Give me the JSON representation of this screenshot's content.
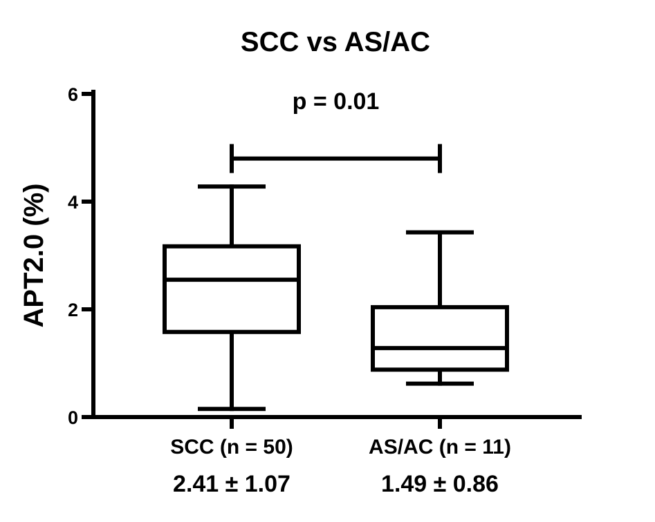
{
  "chart_data": {
    "type": "box",
    "title": "SCC vs AS/AC",
    "ylabel": "APT2.0 (%)",
    "xlabel": "",
    "ylim": [
      0,
      6
    ],
    "yticks": [
      "0",
      "2",
      "4",
      "6"
    ],
    "grid": false,
    "categories": [
      "SCC (n = 50)",
      "AS/AC (n = 11)"
    ],
    "summary_labels": [
      "2.41 ± 1.07",
      "1.49 ± 0.86"
    ],
    "boxes": [
      {
        "category": "SCC (n = 50)",
        "min": 0.15,
        "q1": 1.58,
        "median": 2.55,
        "q3": 3.17,
        "max": 4.28
      },
      {
        "category": "AS/AC (n = 11)",
        "min": 0.62,
        "q1": 0.88,
        "median": 1.28,
        "q3": 2.04,
        "max": 3.43
      }
    ],
    "significance": {
      "label": "p = 0.01",
      "between": [
        0,
        1
      ],
      "y": 4.8
    }
  }
}
